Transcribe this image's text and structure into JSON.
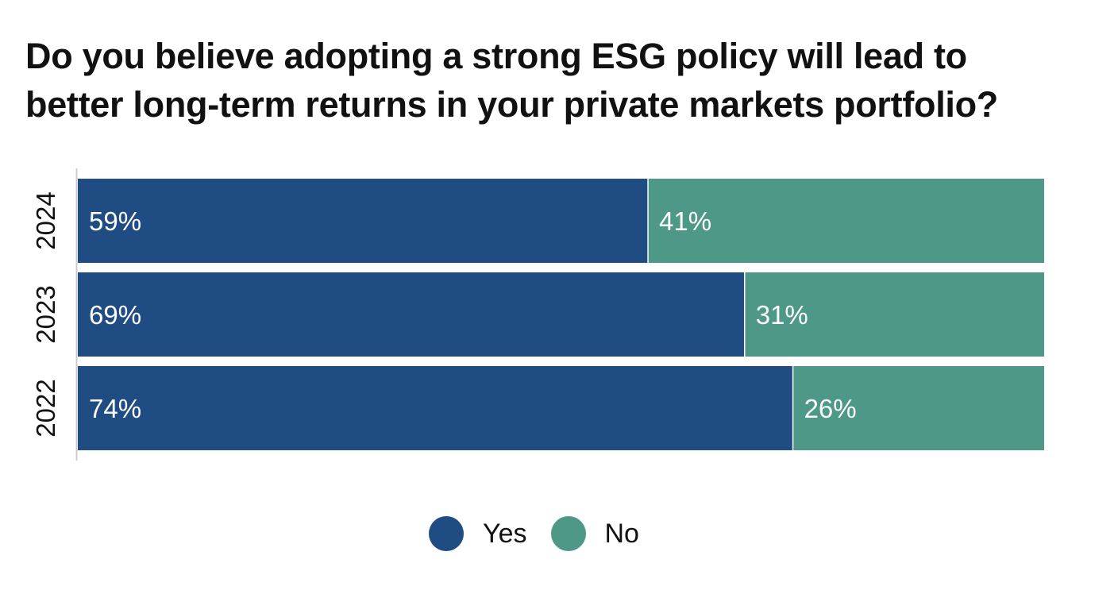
{
  "title_lines": [
    "Do you believe adopting a strong ESG policy will lead to",
    "better long-term returns in your private markets portfolio?"
  ],
  "colors": {
    "yes": "#204c84",
    "no": "#4e9888",
    "axis": "#cccccc",
    "label_text": "#ffffff",
    "text": "#111111"
  },
  "chart_data": {
    "type": "bar",
    "orientation": "horizontal",
    "stacked": true,
    "title": "Do you believe adopting a strong ESG policy will lead to better long-term returns in your private markets portfolio?",
    "categories": [
      "2024",
      "2023",
      "2022"
    ],
    "series": [
      {
        "name": "Yes",
        "values": [
          59,
          69,
          74
        ],
        "labels": [
          "59%",
          "69%",
          "74%"
        ]
      },
      {
        "name": "No",
        "values": [
          41,
          31,
          26
        ],
        "labels": [
          "41%",
          "31%",
          "26%"
        ]
      }
    ],
    "xlim": [
      0,
      100
    ],
    "unit": "%",
    "xlabel": "",
    "ylabel": "",
    "grid": false,
    "legend_position": "bottom-center"
  },
  "legend": {
    "items": [
      {
        "label": "Yes",
        "color_key": "yes"
      },
      {
        "label": "No",
        "color_key": "no"
      }
    ]
  }
}
